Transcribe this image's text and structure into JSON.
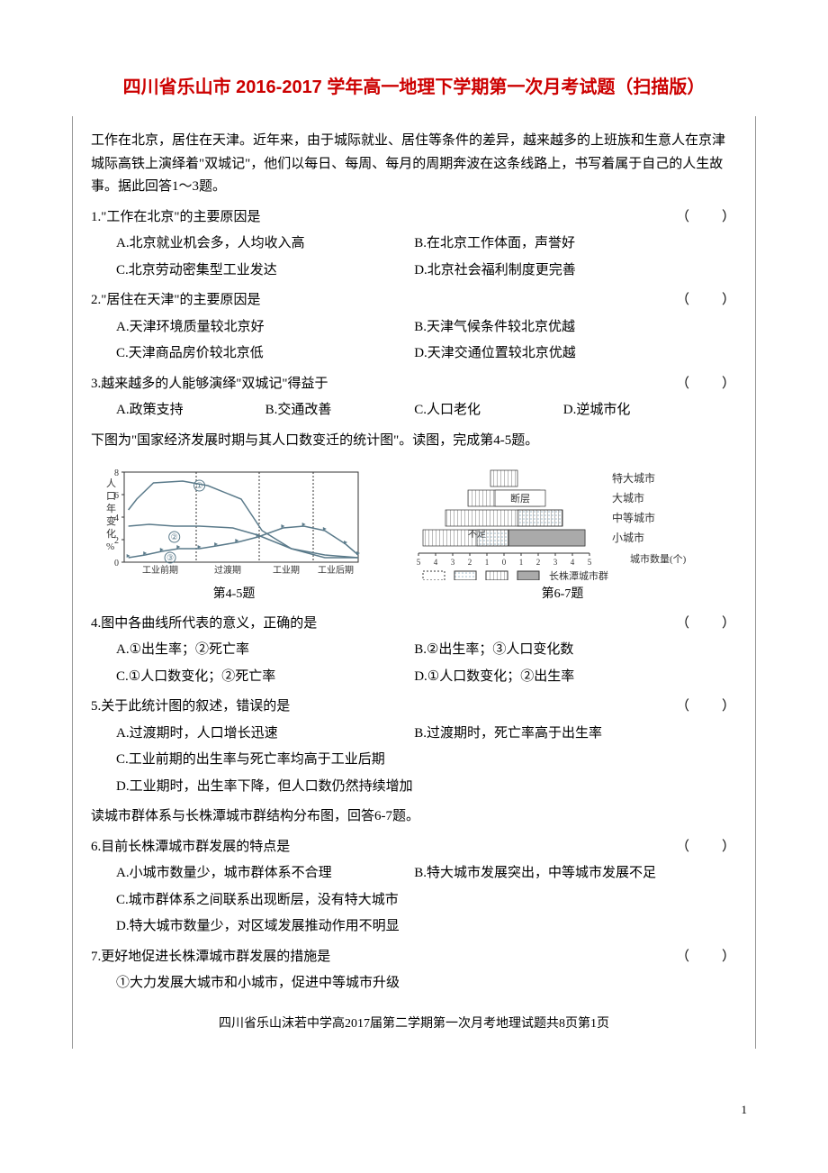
{
  "title": "四川省乐山市 2016-2017 学年高一地理下学期第一次月考试题（扫描版）",
  "passage1": "工作在北京，居住在天津。近年来，由于城际就业、居住等条件的差异，越来越多的上班族和生意人在京津城际高铁上演绎着\"双城记\"，他们以每日、每周、每月的周期奔波在这条线路上，书写着属于自己的人生故事。据此回答1～3题。",
  "q1": {
    "stem": "1.\"工作在北京\"的主要原因是",
    "a": "A.北京就业机会多，人均收入高",
    "b": "B.在北京工作体面，声誉好",
    "c": "C.北京劳动密集型工业发达",
    "d": "D.北京社会福利制度更完善"
  },
  "q2": {
    "stem": "2.\"居住在天津\"的主要原因是",
    "a": "A.天津环境质量较北京好",
    "b": "B.天津气候条件较北京优越",
    "c": "C.天津商品房价较北京低",
    "d": "D.天津交通位置较北京优越"
  },
  "q3": {
    "stem": "3.越来越多的人能够演绎\"双城记\"得益于",
    "a": "A.政策支持",
    "b": "B.交通改善",
    "c": "C.人口老化",
    "d": "D.逆城市化"
  },
  "passage2": "下图为\"国家经济发展时期与其人口数变迁的统计图\"。读图，完成第4-5题。",
  "fig45": {
    "label": "第4-5题",
    "yaxis_label": "人口年变化%",
    "ymax": 8,
    "ytick": 2,
    "xlabels": [
      "工业前期",
      "过渡期",
      "工业期",
      "工业后期"
    ],
    "curve1": {
      "pts": [
        [
          5,
          42
        ],
        [
          15,
          30
        ],
        [
          35,
          12
        ],
        [
          70,
          10
        ],
        [
          100,
          15
        ],
        [
          140,
          30
        ],
        [
          165,
          65
        ],
        [
          200,
          85
        ],
        [
          240,
          95
        ],
        [
          280,
          95
        ]
      ],
      "stroke": "#5a7a8a",
      "sw": 1.5,
      "idx": 90,
      "idy": 15,
      "label": "①"
    },
    "curve2": {
      "pts": [
        [
          5,
          60
        ],
        [
          30,
          58
        ],
        [
          60,
          60
        ],
        [
          90,
          60
        ],
        [
          130,
          62
        ],
        [
          160,
          70
        ],
        [
          200,
          85
        ],
        [
          240,
          92
        ],
        [
          280,
          95
        ]
      ],
      "stroke": "#5a7a8a",
      "sw": 1.5,
      "idx": 60,
      "idy": 72,
      "label": "②"
    },
    "curve3": {
      "pts": [
        [
          5,
          95
        ],
        [
          25,
          92
        ],
        [
          45,
          88
        ],
        [
          65,
          85
        ],
        [
          90,
          85
        ],
        [
          110,
          82
        ],
        [
          135,
          78
        ],
        [
          160,
          72
        ],
        [
          190,
          62
        ],
        [
          215,
          60
        ],
        [
          240,
          65
        ],
        [
          265,
          80
        ],
        [
          280,
          92
        ]
      ],
      "stroke": "#5a7a8a",
      "sw": 1.5,
      "idx": 55,
      "idy": 95,
      "label": "③",
      "markers": true
    },
    "bg": "#ffffff",
    "axis_color": "#333"
  },
  "fig67": {
    "label": "第6-7题",
    "city_levels": [
      "特大城市",
      "大城市",
      "中等城市",
      "小城市"
    ],
    "xaxis_label": "城市数量(个)",
    "xticks": [
      "5",
      "4",
      "3",
      "2",
      "1",
      "0",
      "1",
      "2",
      "3",
      "4",
      "5"
    ],
    "gap_label": "断层",
    "gap_below": "不足",
    "legend_label": "长株潭城市群",
    "fill_right": "#aaaaaa",
    "fill_left_pattern": "#777",
    "fill_mid": "#9db8c8",
    "axis_color": "#333",
    "bg": "#ffffff"
  },
  "q4": {
    "stem": "4.图中各曲线所代表的意义，正确的是",
    "a": "A.①出生率；②死亡率",
    "b": "B.②出生率；③人口变化数",
    "c": "C.①人口数变化；②死亡率",
    "d": "D.①人口数变化；②出生率"
  },
  "q5": {
    "stem": "5.关于此统计图的叙述，错误的是",
    "a": "A.过渡期时，人口增长迅速",
    "b": "B.过渡期时，死亡率高于出生率",
    "c": "C.工业前期的出生率与死亡率均高于工业后期",
    "d": "D.工业期时，出生率下降，但人口数仍然持续增加"
  },
  "passage3": "读城市群体系与长株潭城市群结构分布图，回答6-7题。",
  "q6": {
    "stem": "6.目前长株潭城市群发展的特点是",
    "a": "A.小城市数量少，城市群体系不合理",
    "b": "B.特大城市发展突出，中等城市发展不足",
    "c": "C.城市群体系之间联系出现断层，没有特大城市",
    "d": "D.特大城市数量少，对区域发展推动作用不明显"
  },
  "q7": {
    "stem": "7.更好地促进长株潭城市群发展的措施是",
    "opt1": "①大力发展大城市和小城市，促进中等城市升级"
  },
  "footer": "四川省乐山沫若中学高2017届第二学期第一次月考地理试题共8页第1页",
  "pagenum": "1",
  "paren": "（　　）"
}
